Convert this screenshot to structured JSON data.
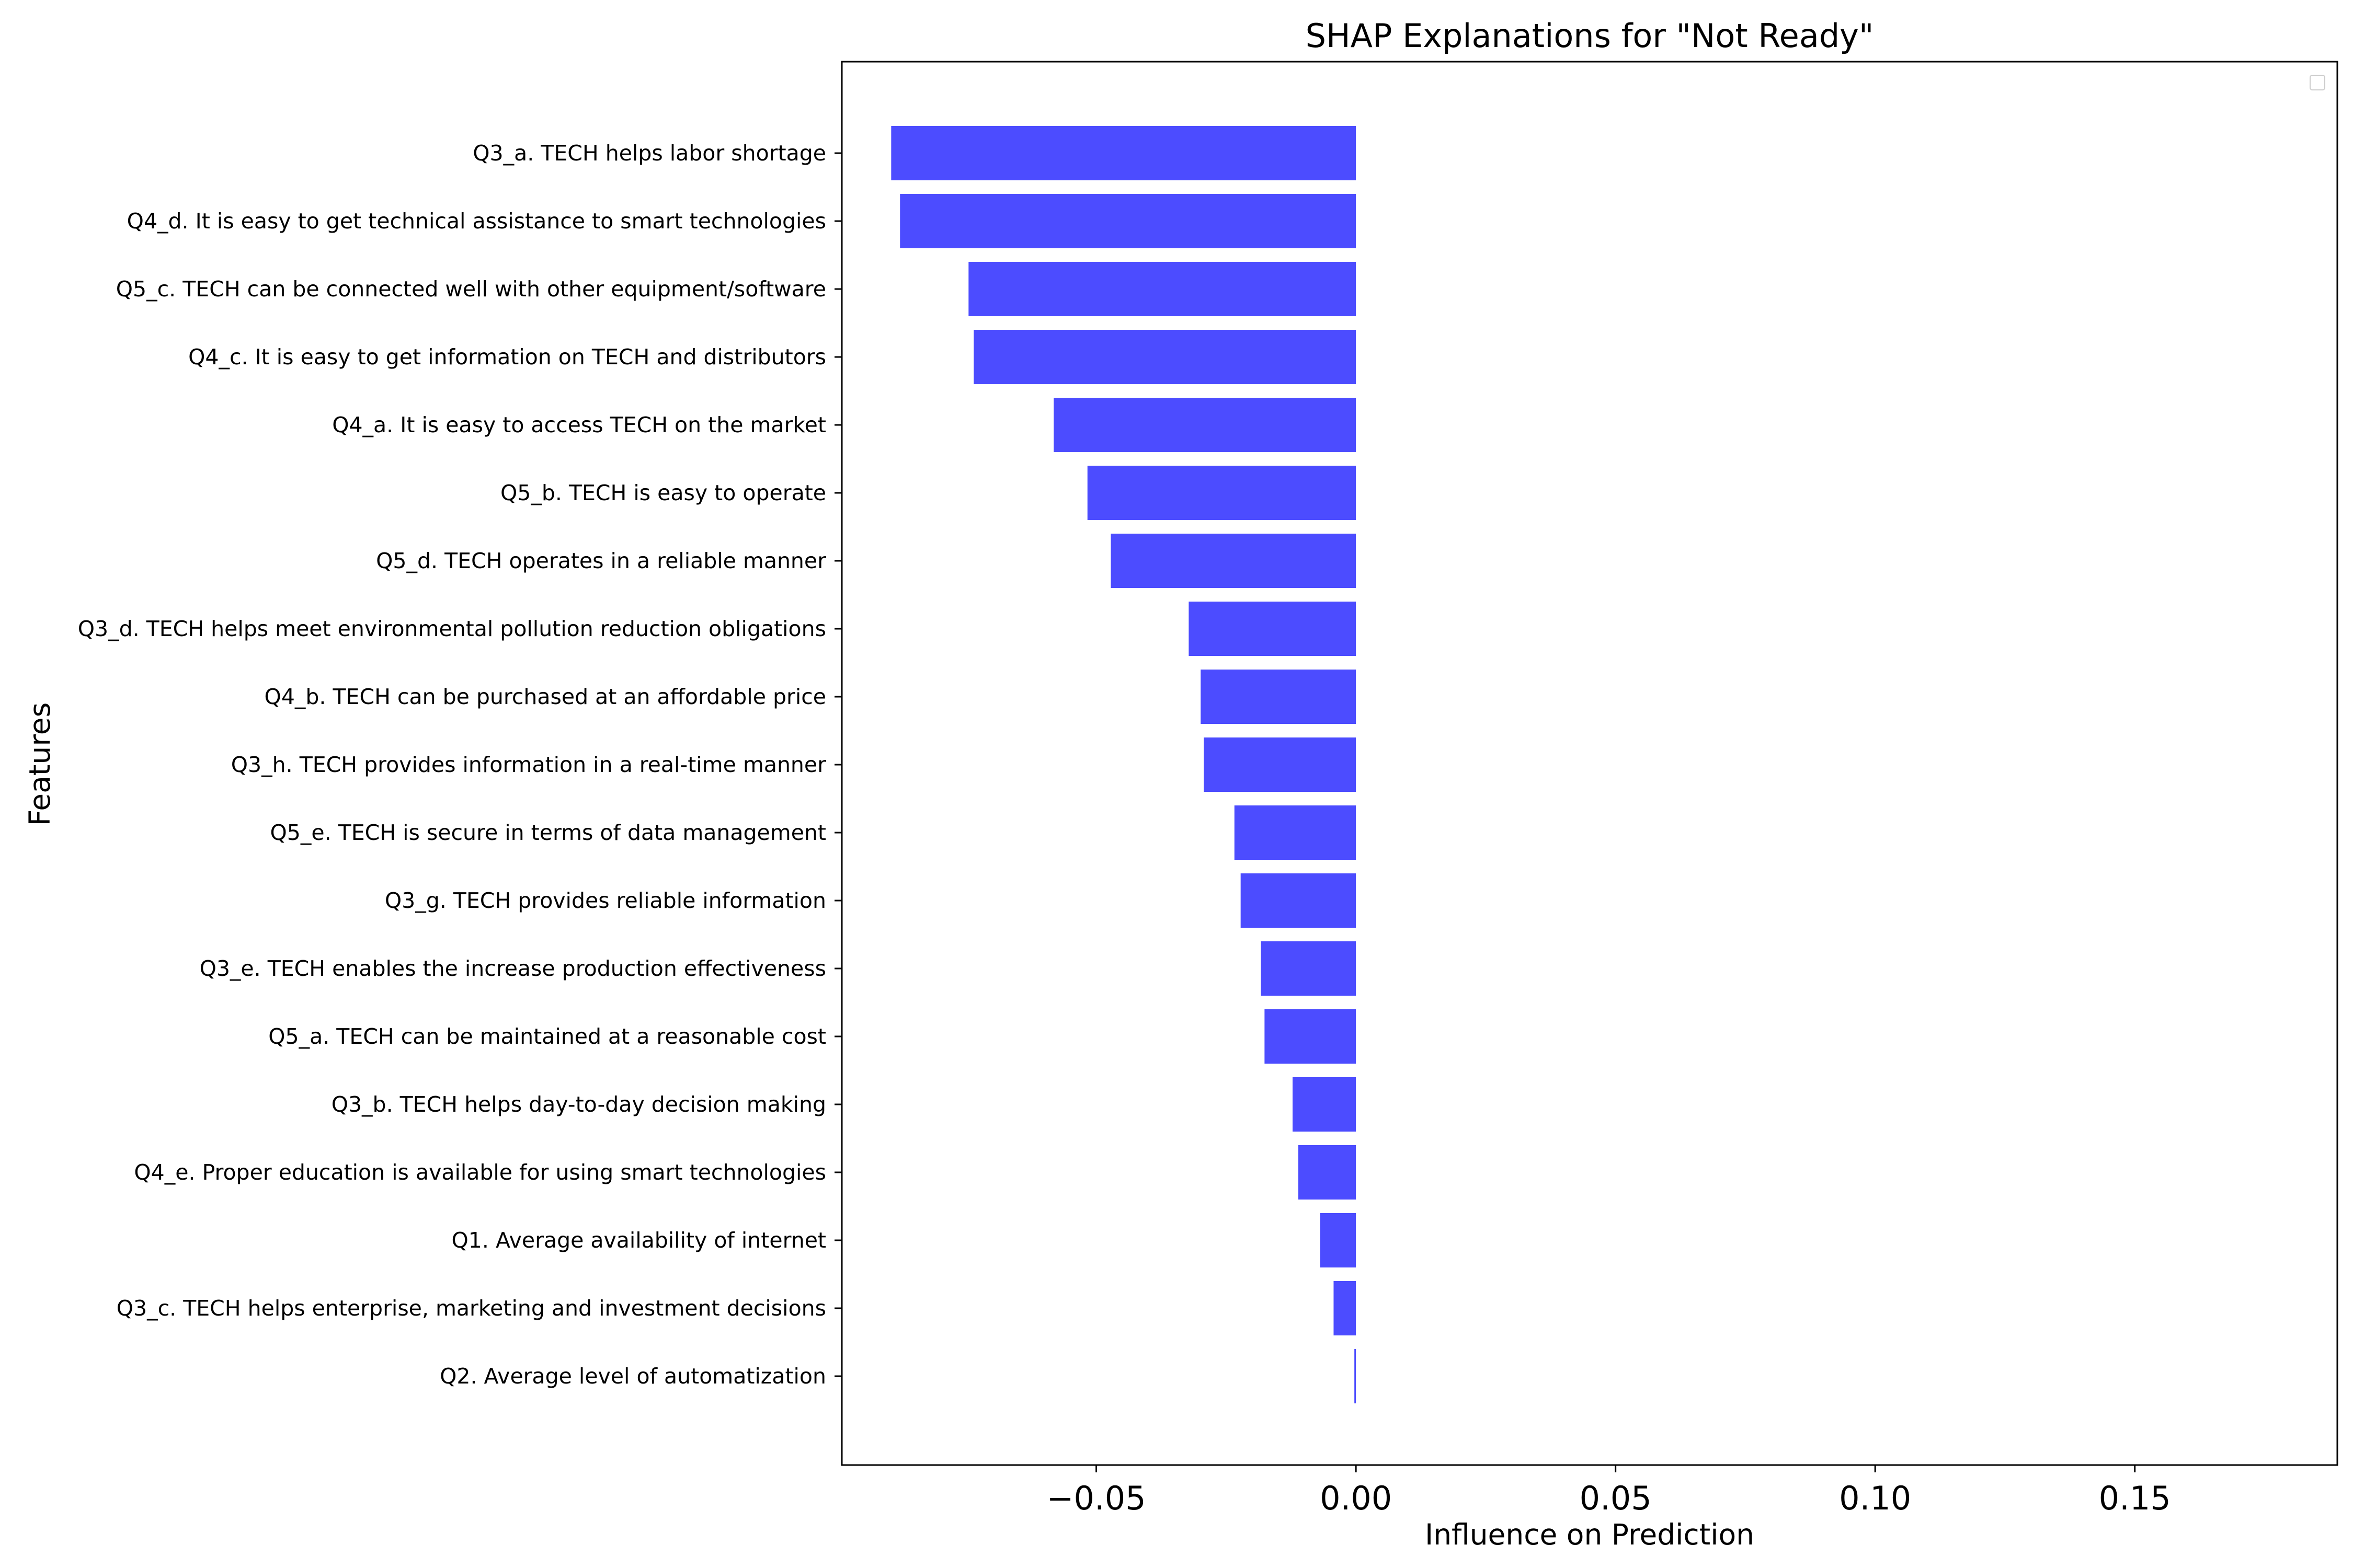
{
  "chart_data": {
    "type": "bar",
    "orientation": "horizontal",
    "title": "SHAP Explanations for \"Not Ready\"",
    "xlabel": "Influence on Prediction",
    "ylabel": "Features",
    "xlim": [
      -0.099,
      0.189
    ],
    "xticks": [
      -0.05,
      0.0,
      0.05,
      0.1,
      0.15
    ],
    "xtick_labels": [
      "−0.05",
      "0.00",
      "0.05",
      "0.10",
      "0.15"
    ],
    "grid": false,
    "legend": "top-right (empty)",
    "bar_color": "#4c4cff",
    "categories": [
      "Q3_a. TECH helps labor shortage",
      "Q4_d. It is easy to get technical assistance to smart technologies",
      "Q5_c. TECH can be connected well with other equipment/software",
      "Q4_c. It is easy to get information on TECH and distributors",
      "Q4_a. It is easy to access TECH on the market",
      "Q5_b. TECH is easy to operate",
      "Q5_d. TECH operates in a reliable manner",
      "Q3_d. TECH helps meet environmental pollution reduction obligations",
      "Q4_b. TECH can be purchased at an affordable price",
      "Q3_h. TECH provides information in a real-time manner",
      "Q5_e. TECH is secure in terms of data management",
      "Q3_g. TECH provides reliable information",
      "Q3_e. TECH enables the increase production effectiveness",
      "Q5_a. TECH can be maintained at a reasonable cost",
      "Q3_b. TECH helps day-to-day decision making",
      "Q4_e. Proper education is available for using smart technologies",
      "Q1. Average availability of internet",
      "Q3_c. TECH helps enterprise, marketing and investment decisions",
      "Q2. Average level of automatization"
    ],
    "values": [
      -0.0895,
      -0.0878,
      -0.0746,
      -0.0736,
      -0.0582,
      -0.0517,
      -0.0472,
      -0.0322,
      -0.0299,
      -0.0293,
      -0.0234,
      -0.0222,
      -0.0183,
      -0.0176,
      -0.0122,
      -0.0111,
      -0.0069,
      -0.0043,
      -0.0003
    ]
  }
}
